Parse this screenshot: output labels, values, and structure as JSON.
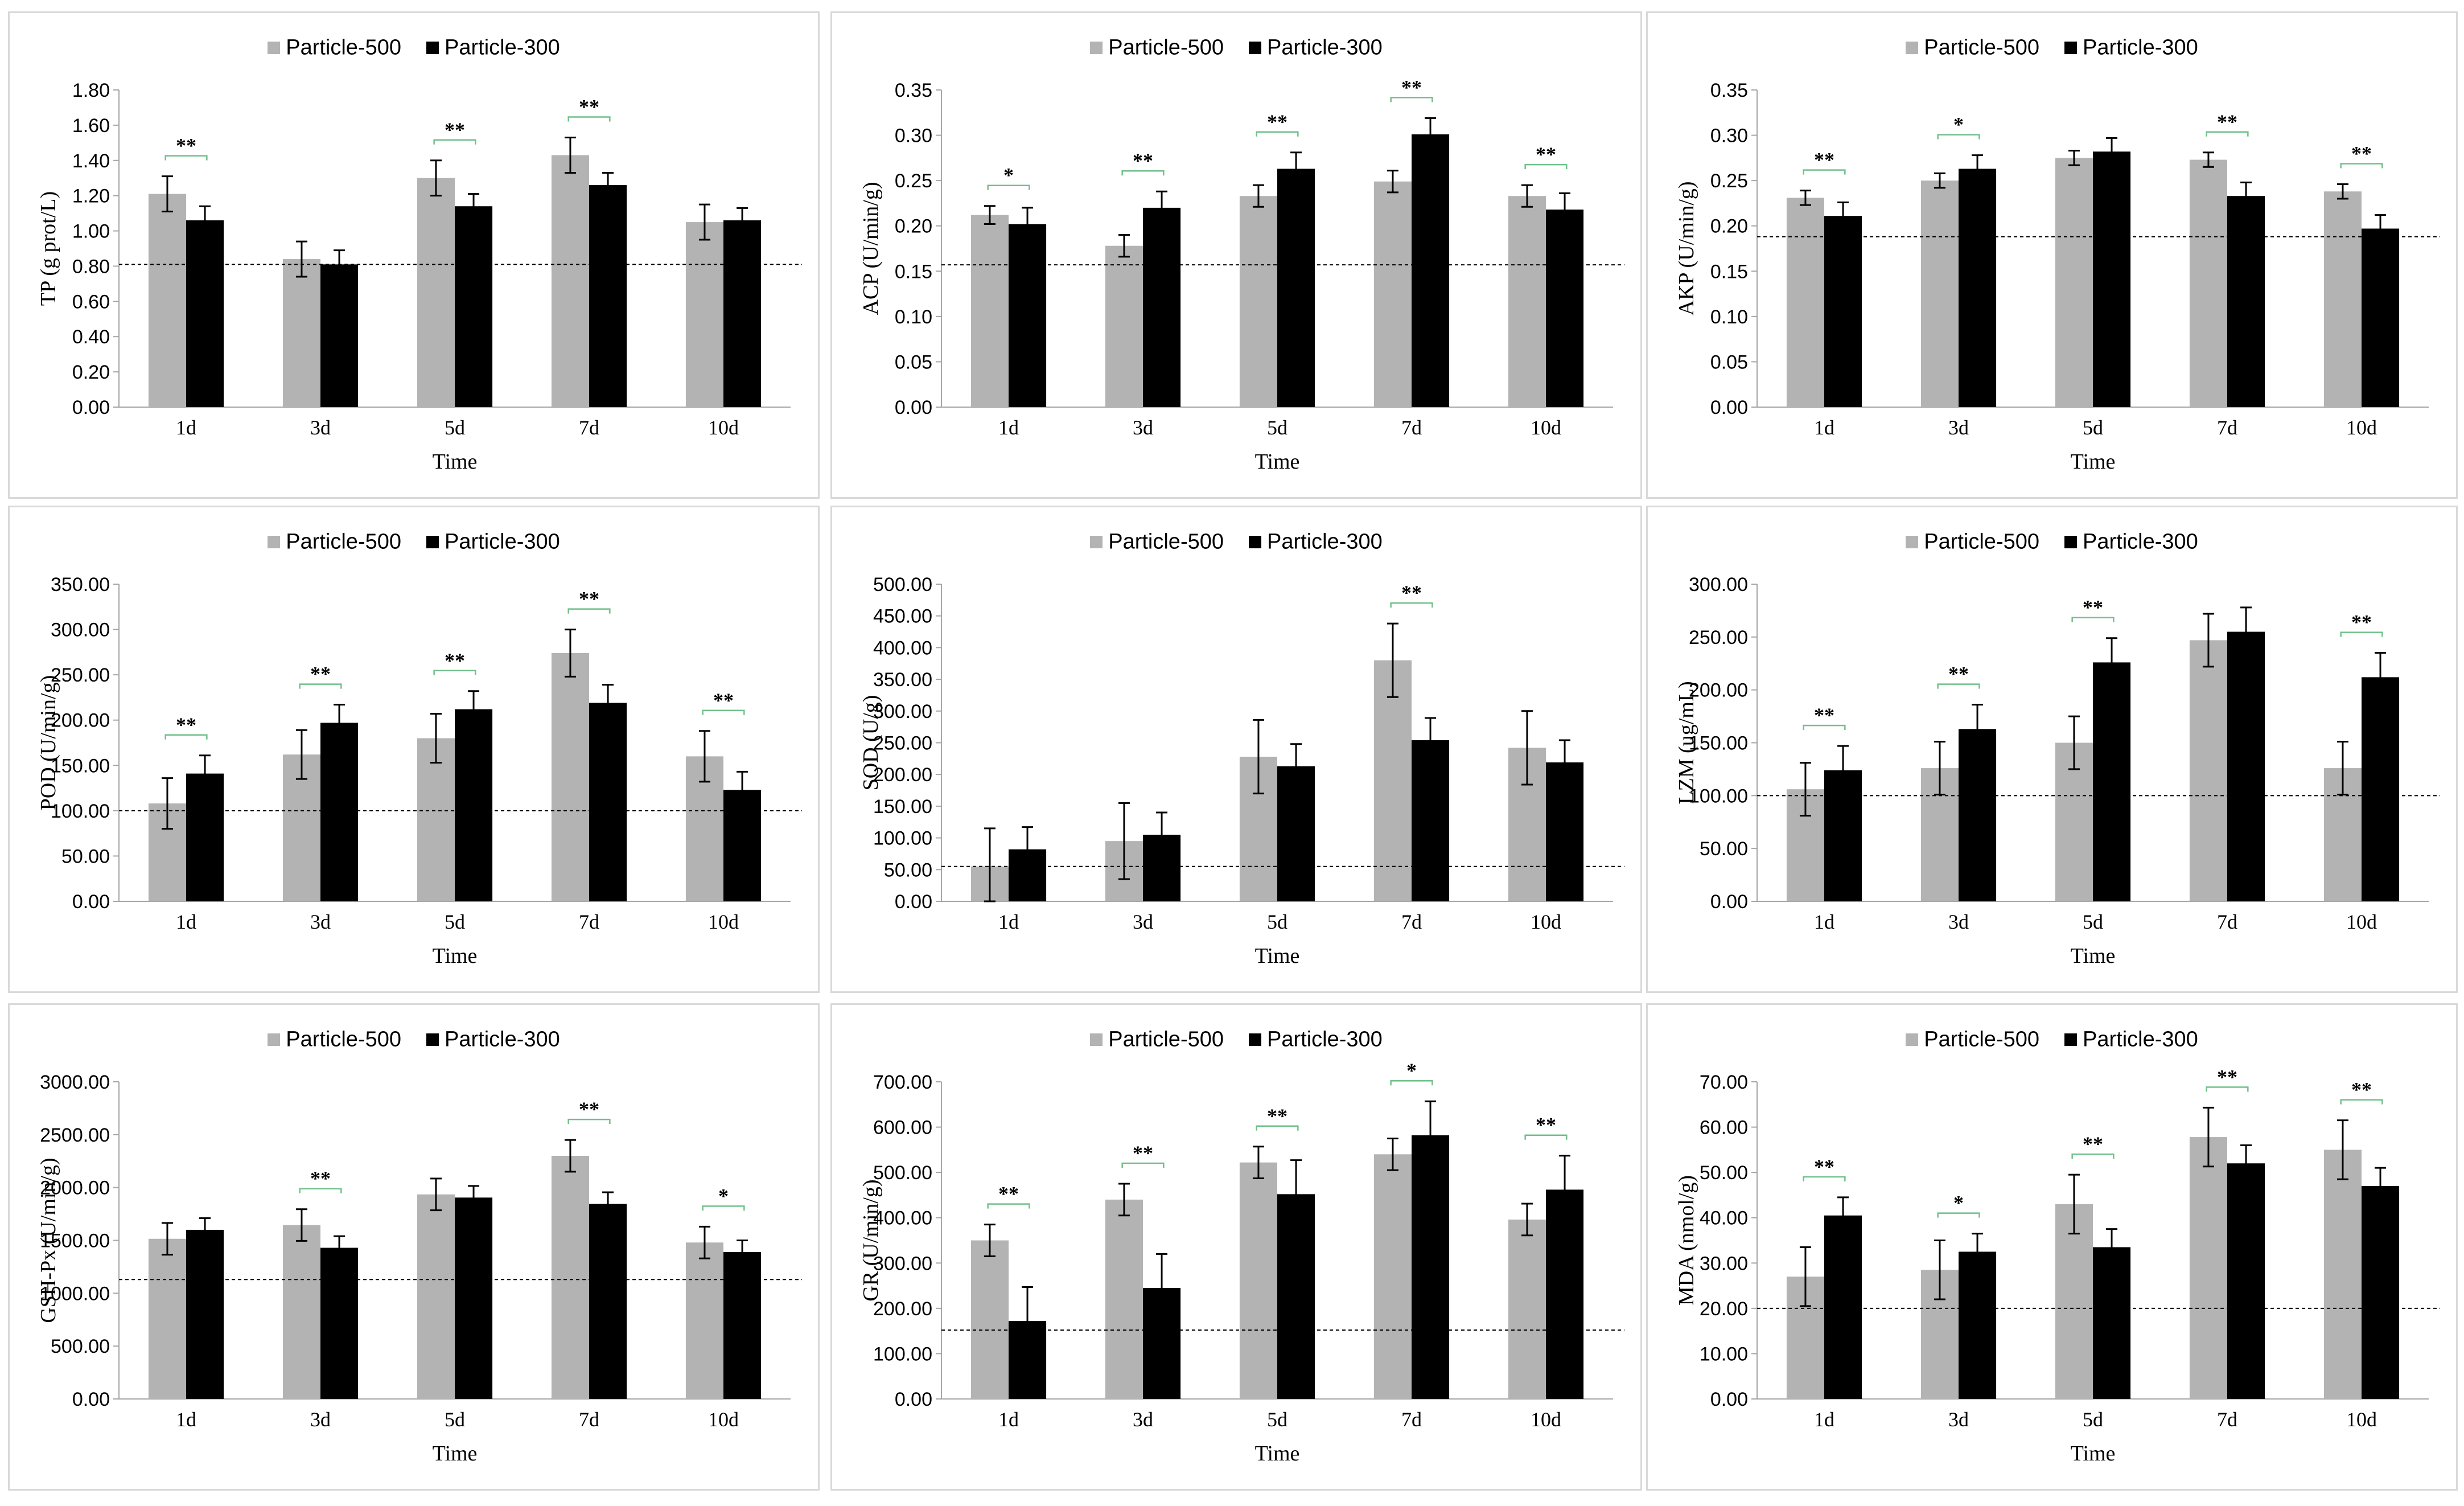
{
  "legend": {
    "series": [
      {
        "name": "Particle-500",
        "color": "#b3b3b3"
      },
      {
        "name": "Particle-300",
        "color": "#000000"
      }
    ]
  },
  "colors": {
    "sig_bracket": "#70c08b",
    "baseline": "#000000",
    "axis": "#a6a6a6"
  },
  "chart_data": [
    {
      "type": "bar",
      "title": "",
      "xlabel": "Time",
      "ylabel": "TP (g prot/L)",
      "categories": [
        "1d",
        "3d",
        "5d",
        "7d",
        "10d"
      ],
      "series": [
        {
          "name": "Particle-500",
          "values": [
            1.21,
            0.84,
            1.3,
            1.43,
            1.05
          ],
          "errors": [
            0.1,
            0.1,
            0.1,
            0.1,
            0.1
          ]
        },
        {
          "name": "Particle-300",
          "values": [
            1.06,
            0.81,
            1.14,
            1.26,
            1.06
          ],
          "errors": [
            0.08,
            0.08,
            0.07,
            0.07,
            0.07
          ]
        }
      ],
      "ylim": [
        0,
        1.8
      ],
      "yticks": [
        0,
        0.2,
        0.4,
        0.6,
        0.8,
        1.0,
        1.2,
        1.4,
        1.6,
        1.8
      ],
      "tick_decimals": 2,
      "baseline": 0.81,
      "significance": [
        "**",
        "",
        "**",
        "**",
        ""
      ]
    },
    {
      "type": "bar",
      "title": "",
      "xlabel": "Time",
      "ylabel": "ACP (U/min/g)",
      "categories": [
        "1d",
        "3d",
        "5d",
        "7d",
        "10d"
      ],
      "series": [
        {
          "name": "Particle-500",
          "values": [
            0.212,
            0.178,
            0.233,
            0.249,
            0.233
          ],
          "errors": [
            0.01,
            0.012,
            0.012,
            0.012,
            0.012
          ]
        },
        {
          "name": "Particle-300",
          "values": [
            0.202,
            0.22,
            0.263,
            0.301,
            0.218
          ],
          "errors": [
            0.018,
            0.018,
            0.018,
            0.018,
            0.018
          ]
        }
      ],
      "ylim": [
        0,
        0.35
      ],
      "yticks": [
        0,
        0.05,
        0.1,
        0.15,
        0.2,
        0.25,
        0.3,
        0.35
      ],
      "tick_decimals": 2,
      "baseline": 0.157,
      "significance": [
        "*",
        "**",
        "**",
        "**",
        "**"
      ]
    },
    {
      "type": "bar",
      "title": "",
      "xlabel": "Time",
      "ylabel": "AKP (U/min/g)",
      "categories": [
        "1d",
        "3d",
        "5d",
        "7d",
        "10d"
      ],
      "series": [
        {
          "name": "Particle-500",
          "values": [
            0.231,
            0.25,
            0.275,
            0.273,
            0.238
          ],
          "errors": [
            0.008,
            0.008,
            0.008,
            0.008,
            0.008
          ]
        },
        {
          "name": "Particle-300",
          "values": [
            0.211,
            0.263,
            0.282,
            0.233,
            0.197
          ],
          "errors": [
            0.015,
            0.015,
            0.015,
            0.015,
            0.015
          ]
        }
      ],
      "ylim": [
        0,
        0.35
      ],
      "yticks": [
        0,
        0.05,
        0.1,
        0.15,
        0.2,
        0.25,
        0.3,
        0.35
      ],
      "tick_decimals": 2,
      "baseline": 0.188,
      "significance": [
        "**",
        "*",
        "",
        "**",
        "**"
      ]
    },
    {
      "type": "bar",
      "title": "",
      "xlabel": "Time",
      "ylabel": "POD (U/min/g)",
      "categories": [
        "1d",
        "3d",
        "5d",
        "7d",
        "10d"
      ],
      "series": [
        {
          "name": "Particle-500",
          "values": [
            108,
            162,
            180,
            274,
            160
          ],
          "errors": [
            28,
            27,
            27,
            26,
            28
          ]
        },
        {
          "name": "Particle-300",
          "values": [
            141,
            197,
            212,
            219,
            123
          ],
          "errors": [
            20,
            20,
            20,
            20,
            20
          ]
        }
      ],
      "ylim": [
        0,
        350
      ],
      "yticks": [
        0,
        50,
        100,
        150,
        200,
        250,
        300,
        350
      ],
      "tick_decimals": 2,
      "baseline": 100,
      "significance": [
        "**",
        "**",
        "**",
        "**",
        "**"
      ]
    },
    {
      "type": "bar",
      "title": "",
      "xlabel": "Time",
      "ylabel": "SOD (U/g)",
      "categories": [
        "1d",
        "3d",
        "5d",
        "7d",
        "10d"
      ],
      "series": [
        {
          "name": "Particle-500",
          "values": [
            55,
            95,
            228,
            380,
            242
          ],
          "errors": [
            60,
            60,
            58,
            58,
            58
          ]
        },
        {
          "name": "Particle-300",
          "values": [
            82,
            105,
            213,
            254,
            219
          ],
          "errors": [
            35,
            35,
            35,
            35,
            35
          ]
        }
      ],
      "ylim": [
        0,
        500
      ],
      "yticks": [
        0,
        50,
        100,
        150,
        200,
        250,
        300,
        350,
        400,
        450,
        500
      ],
      "tick_decimals": 2,
      "baseline": 55,
      "significance": [
        "",
        "",
        "",
        "**",
        ""
      ]
    },
    {
      "type": "bar",
      "title": "",
      "xlabel": "Time",
      "ylabel": "LZM (ug/mL)",
      "categories": [
        "1d",
        "3d",
        "5d",
        "7d",
        "10d"
      ],
      "series": [
        {
          "name": "Particle-500",
          "values": [
            106,
            126,
            150,
            247,
            126
          ],
          "errors": [
            25,
            25,
            25,
            25,
            25
          ]
        },
        {
          "name": "Particle-300",
          "values": [
            124,
            163,
            226,
            255,
            212
          ],
          "errors": [
            23,
            23,
            23,
            23,
            23
          ]
        }
      ],
      "ylim": [
        0,
        300
      ],
      "yticks": [
        0,
        50,
        100,
        150,
        200,
        250,
        300
      ],
      "tick_decimals": 2,
      "baseline": 100,
      "significance": [
        "**",
        "**",
        "**",
        "",
        "**"
      ]
    },
    {
      "type": "bar",
      "title": "",
      "xlabel": "Time",
      "ylabel": "GSH-Px (U/min/g)",
      "categories": [
        "1d",
        "3d",
        "5d",
        "7d",
        "10d"
      ],
      "series": [
        {
          "name": "Particle-500",
          "values": [
            1515,
            1645,
            1935,
            2300,
            1480
          ],
          "errors": [
            150,
            150,
            150,
            150,
            150
          ]
        },
        {
          "name": "Particle-300",
          "values": [
            1600,
            1430,
            1905,
            1845,
            1390
          ],
          "errors": [
            110,
            110,
            110,
            110,
            110
          ]
        }
      ],
      "ylim": [
        0,
        3000
      ],
      "yticks": [
        0,
        500,
        1000,
        1500,
        2000,
        2500,
        3000
      ],
      "tick_decimals": 2,
      "baseline": 1130,
      "significance": [
        "",
        "**",
        "",
        "**",
        "*"
      ]
    },
    {
      "type": "bar",
      "title": "",
      "xlabel": "Time",
      "ylabel": "GR (U/min/g)",
      "categories": [
        "1d",
        "3d",
        "5d",
        "7d",
        "10d"
      ],
      "series": [
        {
          "name": "Particle-500",
          "values": [
            350,
            440,
            522,
            540,
            396
          ],
          "errors": [
            35,
            35,
            35,
            35,
            35
          ]
        },
        {
          "name": "Particle-300",
          "values": [
            172,
            245,
            452,
            582,
            462
          ],
          "errors": [
            75,
            75,
            75,
            75,
            75
          ]
        }
      ],
      "ylim": [
        0,
        700
      ],
      "yticks": [
        0,
        100,
        200,
        300,
        400,
        500,
        600,
        700
      ],
      "tick_decimals": 2,
      "baseline": 152,
      "significance": [
        "**",
        "**",
        "**",
        "*",
        "**"
      ]
    },
    {
      "type": "bar",
      "title": "",
      "xlabel": "Time",
      "ylabel": "MDA (nmol/g)",
      "categories": [
        "1d",
        "3d",
        "5d",
        "7d",
        "10d"
      ],
      "series": [
        {
          "name": "Particle-500",
          "values": [
            27,
            28.5,
            43,
            57.8,
            55
          ],
          "errors": [
            6.5,
            6.5,
            6.5,
            6.5,
            6.5
          ]
        },
        {
          "name": "Particle-300",
          "values": [
            40.5,
            32.5,
            33.5,
            52,
            47
          ],
          "errors": [
            4,
            4,
            4,
            4,
            4
          ]
        }
      ],
      "ylim": [
        0,
        70
      ],
      "yticks": [
        0,
        10,
        20,
        30,
        40,
        50,
        60,
        70
      ],
      "tick_decimals": 2,
      "baseline": 20,
      "significance": [
        "**",
        "*",
        "**",
        "**",
        "**"
      ]
    }
  ]
}
